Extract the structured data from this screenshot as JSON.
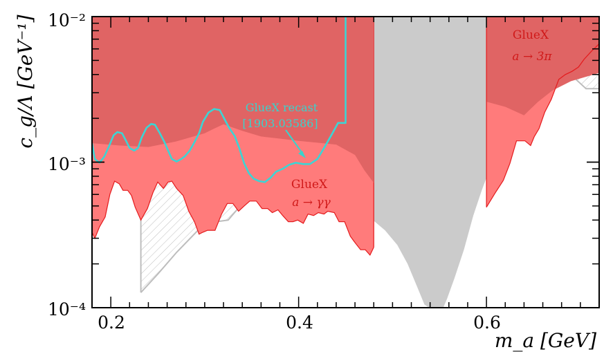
{
  "chart_data": {
    "type": "area",
    "xlim": [
      0.18,
      0.72
    ],
    "ylim": [
      0.0001,
      0.01
    ],
    "yscale": "log",
    "grid": false,
    "legend": "none",
    "xlabel": "m_a [GeV]",
    "ylabel": "c_g/Λ [GeV⁻¹]",
    "x_ticks": [
      {
        "value": 0.2,
        "label": "0.2"
      },
      {
        "value": 0.4,
        "label": "0.4"
      },
      {
        "value": 0.6,
        "label": "0.6"
      }
    ],
    "y_ticks": [
      {
        "value": 0.0001,
        "label": "10⁻⁴"
      },
      {
        "value": 0.001,
        "label": "10⁻³"
      },
      {
        "value": 0.01,
        "label": "10⁻²"
      }
    ],
    "colors": {
      "exclusion_light": "#ff7b7b",
      "exclusion_dark": "#e06464",
      "exclusion_edge": "#e41a1c",
      "gray_band": "#cbcbcb",
      "recast_line": "#3bd5d5",
      "hatch": "#bdbdbd"
    },
    "series": [
      {
        "name": "GlueX a → γγ",
        "kind": "filled_exclusion_lower_boundary",
        "points": [
          [
            0.18,
            0.00033
          ],
          [
            0.183,
            0.0003
          ],
          [
            0.188,
            0.00036
          ],
          [
            0.194,
            0.00042
          ],
          [
            0.199,
            0.0006
          ],
          [
            0.204,
            0.00074
          ],
          [
            0.209,
            0.00071
          ],
          [
            0.213,
            0.00064
          ],
          [
            0.218,
            0.00064
          ],
          [
            0.222,
            0.00059
          ],
          [
            0.226,
            0.00049
          ],
          [
            0.232,
            0.0004
          ],
          [
            0.239,
            0.00048
          ],
          [
            0.245,
            0.00062
          ],
          [
            0.25,
            0.00073
          ],
          [
            0.256,
            0.00066
          ],
          [
            0.261,
            0.00073
          ],
          [
            0.265,
            0.00074
          ],
          [
            0.27,
            0.00066
          ],
          [
            0.277,
            0.00059
          ],
          [
            0.283,
            0.00046
          ],
          [
            0.289,
            0.00039
          ],
          [
            0.294,
            0.00032
          ],
          [
            0.298,
            0.00033
          ],
          [
            0.303,
            0.00034
          ],
          [
            0.311,
            0.00034
          ],
          [
            0.318,
            0.00044
          ],
          [
            0.324,
            0.00052
          ],
          [
            0.33,
            0.00052
          ],
          [
            0.336,
            0.00046
          ],
          [
            0.342,
            0.0005
          ],
          [
            0.348,
            0.00054
          ],
          [
            0.355,
            0.00054
          ],
          [
            0.361,
            0.00048
          ],
          [
            0.367,
            0.00048
          ],
          [
            0.372,
            0.00045
          ],
          [
            0.378,
            0.00047
          ],
          [
            0.383,
            0.00043
          ],
          [
            0.389,
            0.00039
          ],
          [
            0.394,
            0.00039
          ],
          [
            0.399,
            0.0004
          ],
          [
            0.405,
            0.00038
          ],
          [
            0.41,
            0.00044
          ],
          [
            0.416,
            0.00043
          ],
          [
            0.421,
            0.00045
          ],
          [
            0.427,
            0.00044
          ],
          [
            0.431,
            0.00046
          ],
          [
            0.438,
            0.00045
          ],
          [
            0.443,
            0.00039
          ],
          [
            0.449,
            0.00039
          ],
          [
            0.455,
            0.00031
          ],
          [
            0.46,
            0.00028
          ],
          [
            0.466,
            0.00025
          ],
          [
            0.471,
            0.00025
          ],
          [
            0.476,
            0.00023
          ],
          [
            0.48,
            0.00026
          ]
        ]
      },
      {
        "name": "GlueX a → 3π",
        "kind": "filled_exclusion_lower_boundary",
        "points": [
          [
            0.6,
            0.00049
          ],
          [
            0.609,
            0.00061
          ],
          [
            0.618,
            0.00075
          ],
          [
            0.625,
            0.00098
          ],
          [
            0.632,
            0.0014
          ],
          [
            0.641,
            0.0014
          ],
          [
            0.647,
            0.0013
          ],
          [
            0.651,
            0.0015
          ],
          [
            0.656,
            0.0017
          ],
          [
            0.662,
            0.0022
          ],
          [
            0.669,
            0.0027
          ],
          [
            0.677,
            0.0037
          ],
          [
            0.684,
            0.004
          ],
          [
            0.691,
            0.0042
          ],
          [
            0.698,
            0.0045
          ],
          [
            0.704,
            0.0051
          ],
          [
            0.712,
            0.0058
          ],
          [
            0.72,
            0.0065
          ]
        ]
      },
      {
        "name": "GlueX recast [1903.03586]",
        "kind": "line",
        "points": [
          [
            0.18,
            0.00135
          ],
          [
            0.183,
            0.00105
          ],
          [
            0.188,
            0.00099
          ],
          [
            0.193,
            0.00109
          ],
          [
            0.198,
            0.00128
          ],
          [
            0.203,
            0.00153
          ],
          [
            0.207,
            0.00161
          ],
          [
            0.212,
            0.00158
          ],
          [
            0.216,
            0.00141
          ],
          [
            0.22,
            0.00125
          ],
          [
            0.225,
            0.0012
          ],
          [
            0.229,
            0.00125
          ],
          [
            0.233,
            0.00148
          ],
          [
            0.238,
            0.00172
          ],
          [
            0.243,
            0.00183
          ],
          [
            0.247,
            0.00181
          ],
          [
            0.252,
            0.00159
          ],
          [
            0.257,
            0.00138
          ],
          [
            0.261,
            0.0012
          ],
          [
            0.265,
            0.00105
          ],
          [
            0.27,
            0.00101
          ],
          [
            0.275,
            0.00105
          ],
          [
            0.279,
            0.0011
          ],
          [
            0.284,
            0.0012
          ],
          [
            0.289,
            0.00137
          ],
          [
            0.294,
            0.00158
          ],
          [
            0.298,
            0.00189
          ],
          [
            0.304,
            0.00219
          ],
          [
            0.31,
            0.00232
          ],
          [
            0.316,
            0.00228
          ],
          [
            0.321,
            0.00198
          ],
          [
            0.326,
            0.00172
          ],
          [
            0.332,
            0.00151
          ],
          [
            0.337,
            0.00124
          ],
          [
            0.342,
            0.00098
          ],
          [
            0.347,
            0.00084
          ],
          [
            0.352,
            0.00077
          ],
          [
            0.358,
            0.00074
          ],
          [
            0.364,
            0.00073
          ],
          [
            0.37,
            0.00078
          ],
          [
            0.376,
            0.00086
          ],
          [
            0.383,
            0.0009
          ],
          [
            0.39,
            0.00096
          ],
          [
            0.397,
            0.00099
          ],
          [
            0.405,
            0.00097
          ],
          [
            0.412,
            0.00097
          ],
          [
            0.42,
            0.00105
          ],
          [
            0.428,
            0.00128
          ],
          [
            0.436,
            0.00158
          ],
          [
            0.442,
            0.00186
          ],
          [
            0.45,
            0.00186
          ],
          [
            0.45,
            0.01
          ]
        ]
      },
      {
        "name": "",
        "kind": "gray_excluded_band",
        "points": [
          [
            0.479,
            0.01
          ],
          [
            0.479,
            0.0004
          ],
          [
            0.492,
            0.00034
          ],
          [
            0.505,
            0.00027
          ],
          [
            0.516,
            0.0002
          ],
          [
            0.526,
            0.00014
          ],
          [
            0.534,
            0.000105
          ],
          [
            0.539,
            0.0001
          ],
          [
            0.554,
            0.0001
          ],
          [
            0.558,
            0.000115
          ],
          [
            0.566,
            0.00016
          ],
          [
            0.576,
            0.00025
          ],
          [
            0.586,
            0.00043
          ],
          [
            0.595,
            0.00064
          ],
          [
            0.6,
            0.00078
          ],
          [
            0.6,
            0.01
          ]
        ]
      }
    ],
    "annotations": [
      {
        "text": "GlueX recast",
        "color": "cyan"
      },
      {
        "text": "[1903.03586]",
        "color": "cyan"
      },
      {
        "text": "GlueX",
        "color": "red"
      },
      {
        "text": "a → γγ",
        "color": "red"
      },
      {
        "text": "GlueX",
        "color": "red"
      },
      {
        "text": "a → 3π",
        "color": "red"
      }
    ]
  }
}
